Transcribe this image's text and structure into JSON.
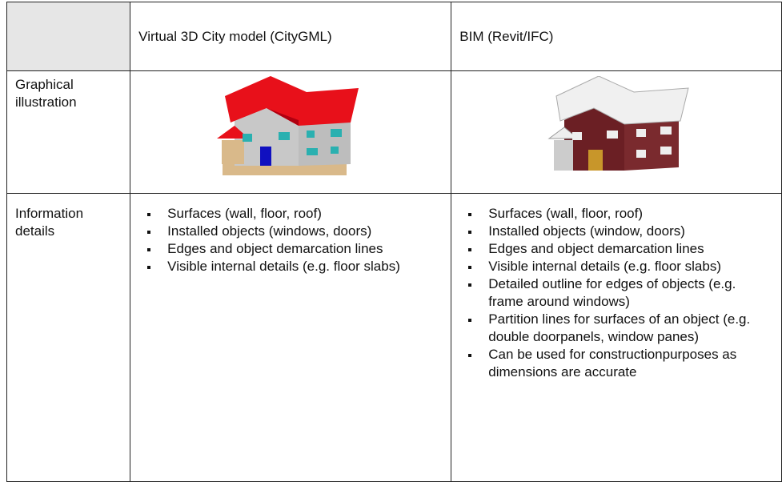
{
  "header": {
    "columns": [
      "Virtual 3D City model (CityGML)",
      "BIM (Revit/IFC)"
    ]
  },
  "rows": [
    {
      "label": "Graphical illustration"
    },
    {
      "label": "Information details",
      "cells": [
        [
          "Surfaces (wall, floor, roof)",
          "Installed objects (windows, doors)",
          "Edges and object demarcation lines",
          "Visible internal details (e.g. floor slabs)"
        ],
        [
          "Surfaces (wall, floor, roof)",
          "Installed objects (window, doors)",
          "Edges and object demarcation lines",
          "Visible internal details (e.g. floor slabs)",
          "Detailed outline for edges of objects (e.g. frame around windows)",
          "Partition lines for surfaces of an object (e.g. double doorpanels, window panes)",
          "Can be used for constructionpurposes as dimensions are accurate"
        ]
      ]
    }
  ]
}
